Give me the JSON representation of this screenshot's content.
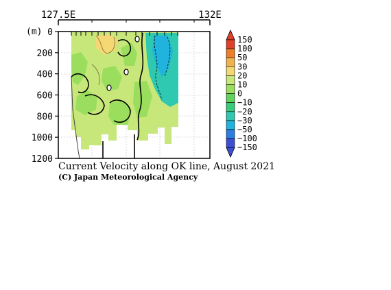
{
  "chart_data": {
    "type": "heatmap",
    "title": "Current Velocity along OK line, August 2021",
    "credit": "(C) Japan Meteorological Agency",
    "x_axis": {
      "top_tick_labels": [
        "127.5E",
        "132E"
      ],
      "range": [
        127.5,
        132.5
      ]
    },
    "y_axis": {
      "unit_label": "(m)",
      "ticks": [
        0,
        200,
        400,
        600,
        800,
        1000,
        1200
      ],
      "range": [
        0,
        1200
      ],
      "inverted": true
    },
    "colorbar": {
      "labels": [
        "150",
        "100",
        "50",
        "30",
        "20",
        "10",
        "0",
        "−10",
        "−20",
        "−30",
        "−50",
        "−100",
        "−150"
      ],
      "colors": [
        "#e0402a",
        "#ef7e2a",
        "#f0b34c",
        "#f5d873",
        "#c8e77a",
        "#9bde5e",
        "#5fd35a",
        "#36cc7c",
        "#2ec9b0",
        "#1fb3dd",
        "#2b7fe0",
        "#3d4fd2"
      ]
    },
    "fill_description_colors": {
      "positive": "#c8e77a",
      "weak": "#9bde5e",
      "negative": "#2ec9b0",
      "land": "#ffffff"
    },
    "grid": true
  }
}
